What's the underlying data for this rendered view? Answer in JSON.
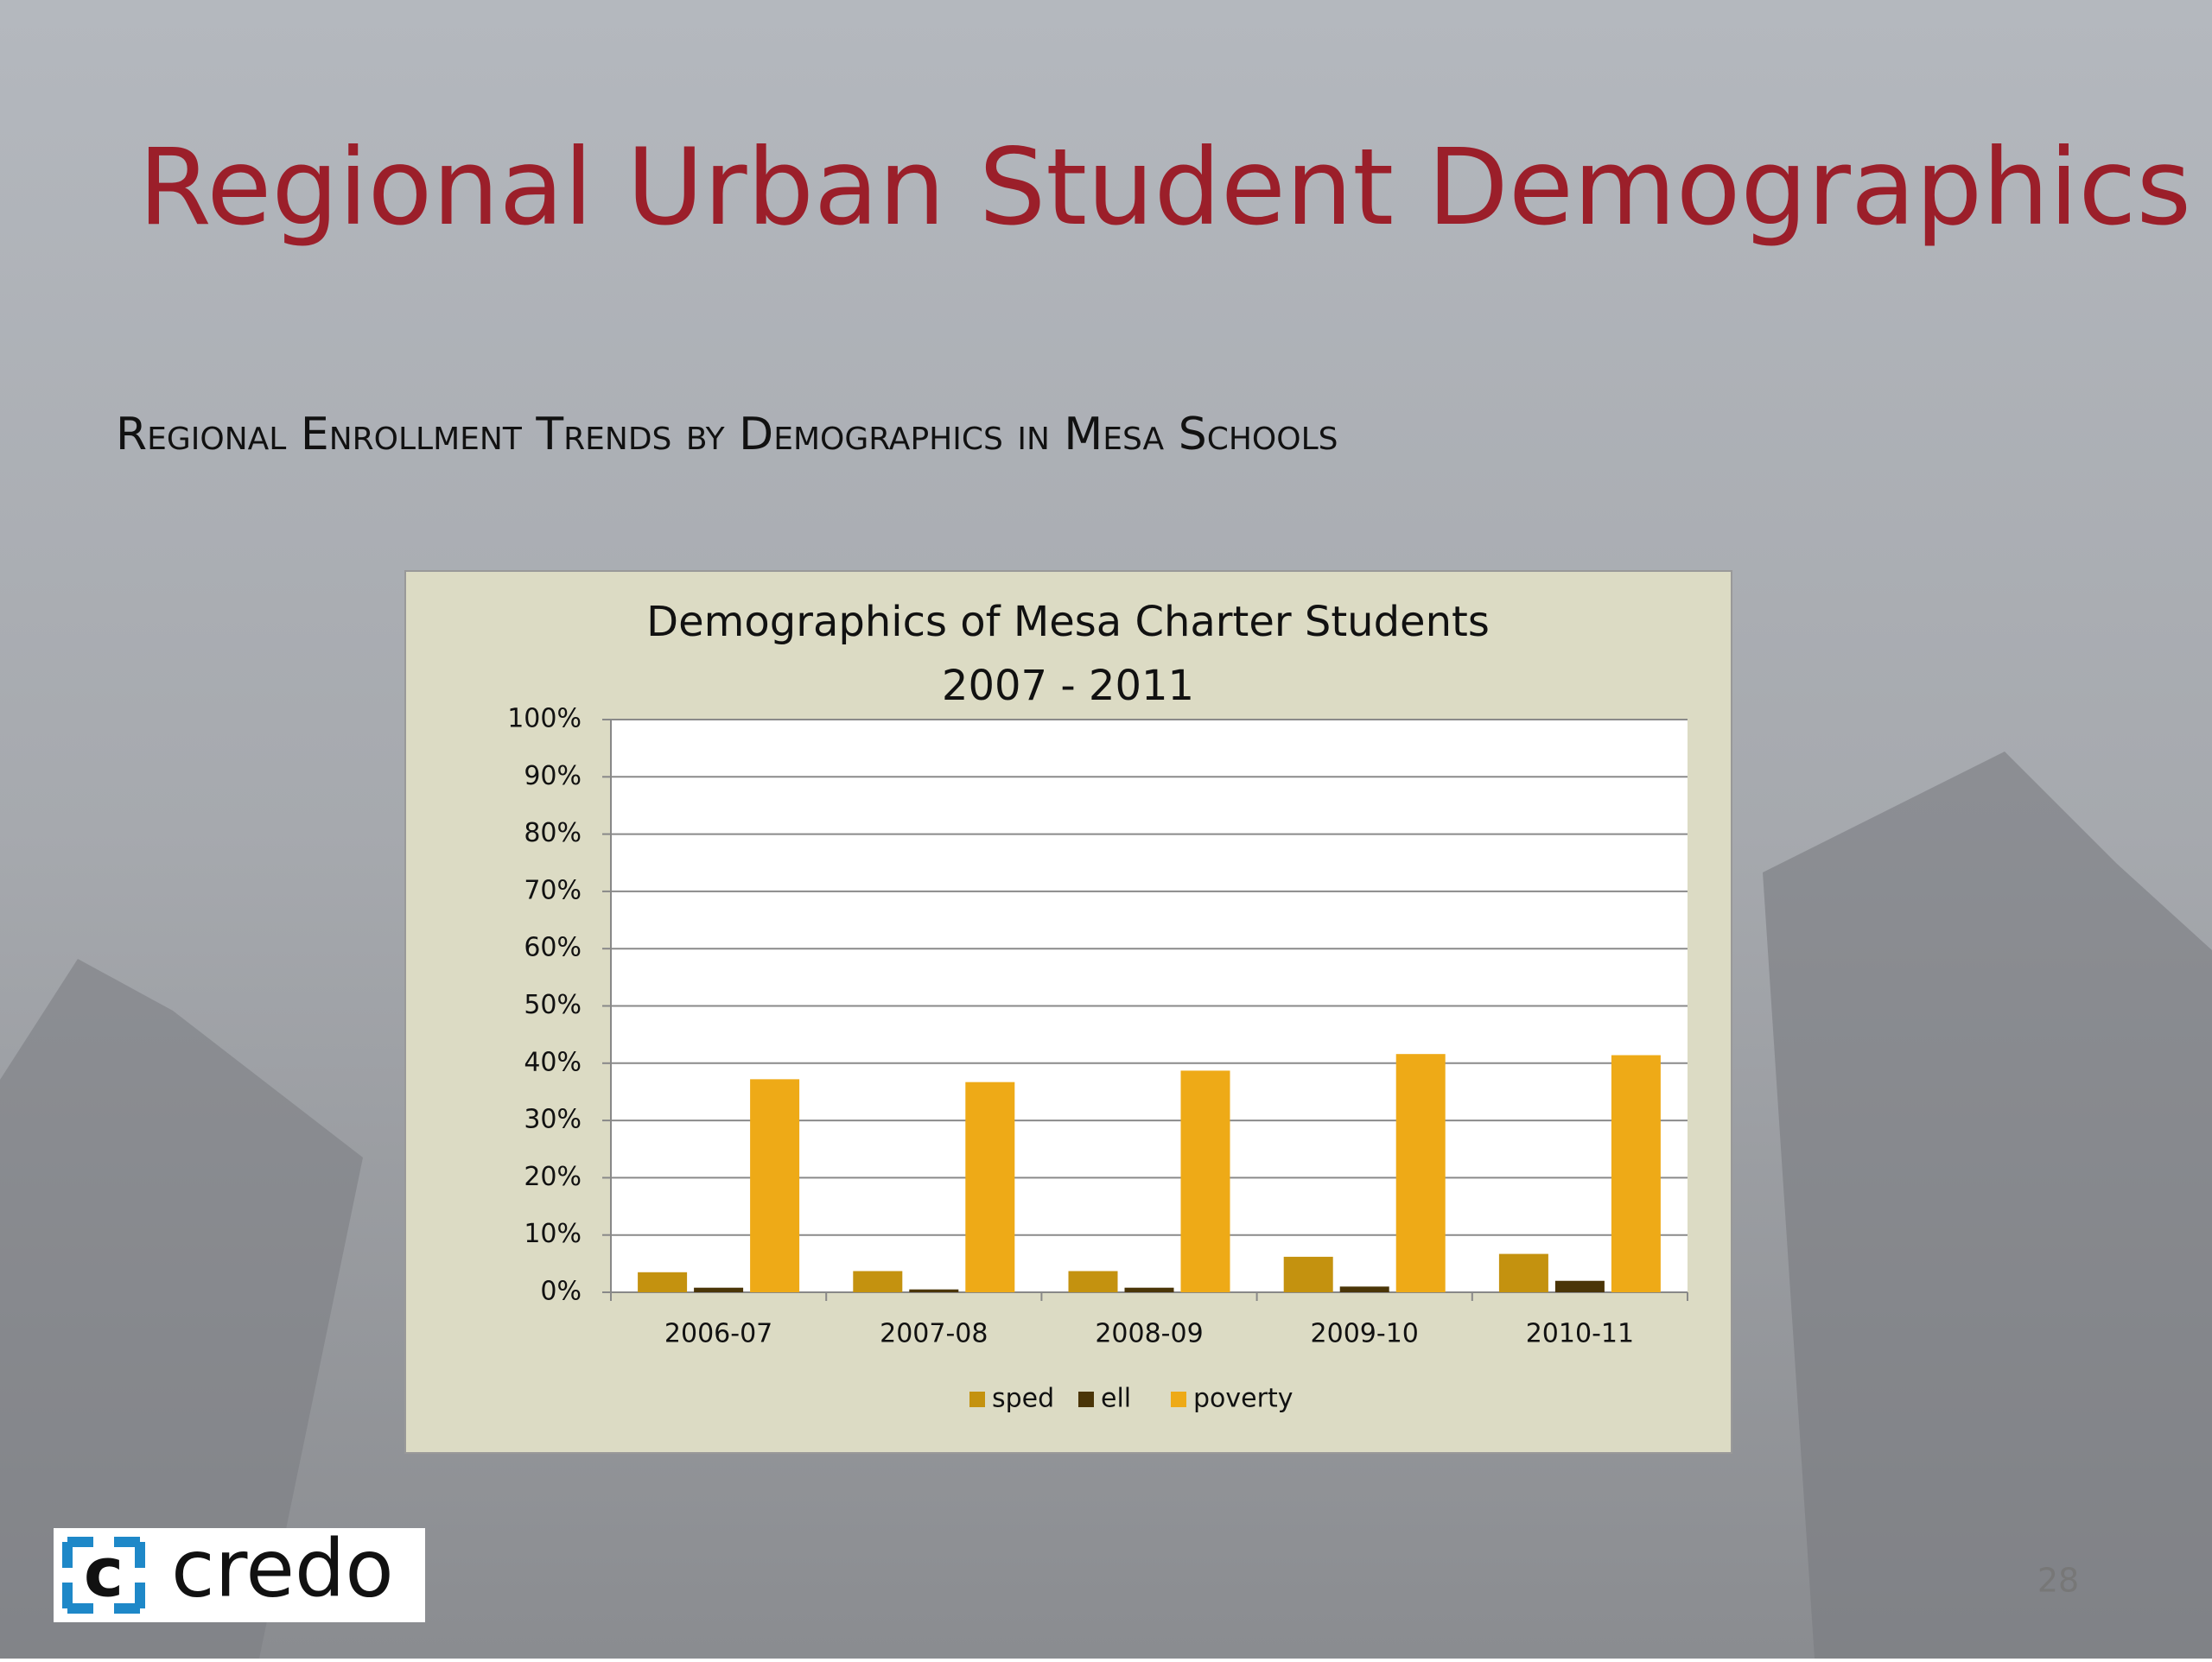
{
  "slide": {
    "title": "Regional Urban Student Demographics",
    "subtitle": "Regional Enrollment Trends by Demographics in Mesa Schools",
    "logo": "credo",
    "page_number": "28"
  },
  "chart_data": {
    "type": "bar",
    "title": [
      "Demographics of  Mesa Charter Students",
      "2007 - 2011"
    ],
    "categories": [
      "2006-07",
      "2007-08",
      "2008-09",
      "2009-10",
      "2010-11"
    ],
    "series": [
      {
        "name": "sped",
        "color": "#c4920f",
        "values": [
          3.5,
          3.7,
          3.7,
          6.2,
          6.7
        ]
      },
      {
        "name": "ell",
        "color": "#4a3508",
        "values": [
          0.8,
          0.5,
          0.8,
          1.0,
          2.0
        ]
      },
      {
        "name": "poverty",
        "color": "#eeaa17",
        "values": [
          37.2,
          36.7,
          38.7,
          41.6,
          41.4
        ]
      }
    ],
    "ylim": [
      0,
      100
    ],
    "yticks": [
      {
        "value": 0,
        "label": "0%"
      },
      {
        "value": 10,
        "label": "10%"
      },
      {
        "value": 20,
        "label": "20%"
      },
      {
        "value": 30,
        "label": "30%"
      },
      {
        "value": 40,
        "label": "40%"
      },
      {
        "value": 50,
        "label": "50%"
      },
      {
        "value": 60,
        "label": "60%"
      },
      {
        "value": 70,
        "label": "70%"
      },
      {
        "value": 80,
        "label": "80%"
      },
      {
        "value": 90,
        "label": "90%"
      },
      {
        "value": 100,
        "label": "100%"
      }
    ],
    "grid": true,
    "legend": "bottom"
  }
}
